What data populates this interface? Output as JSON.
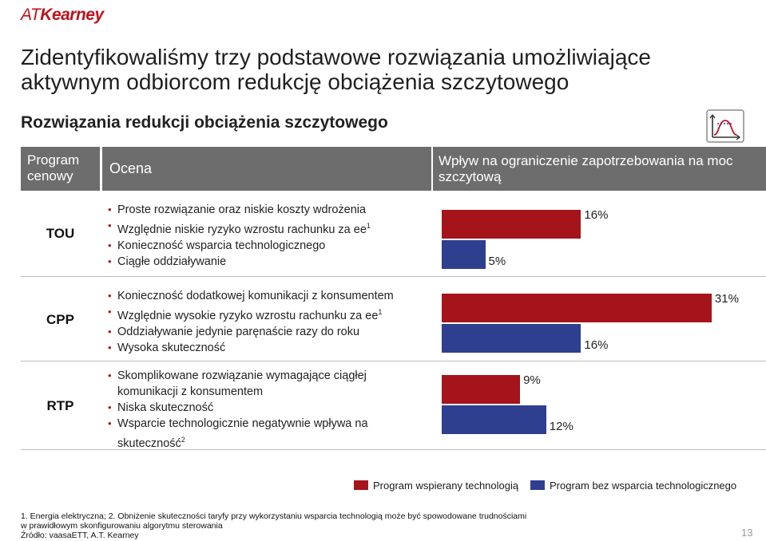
{
  "logo": {
    "part1": "AT",
    "part2": "Kearney"
  },
  "title": "Zidentyfikowaliśmy trzy podstawowe rozwiązania umożliwiające aktywnym odbiorcom redukcję obciążenia szczytowego",
  "subtitle": "Rozwiązania redukcji obciążenia szczytowego",
  "icon": "peak-load-chart-icon",
  "header": {
    "program": "Program cenowy",
    "ocena": "Ocena",
    "wplyw": "Wpływ na ograniczenie zapotrzebowania na moc szczytową"
  },
  "rows": [
    {
      "label": "TOU",
      "bullets": [
        {
          "text": "Proste rozwiązanie oraz niskie koszty wdrożenia",
          "sup": ""
        },
        {
          "text": "Względnie niskie ryzyko wzrostu rachunku za ee",
          "sup": "1"
        },
        {
          "text": "Konieczność wsparcia technologicznego",
          "sup": ""
        },
        {
          "text": "Ciągłe oddziaływanie",
          "sup": ""
        }
      ],
      "labels": {
        "tech": "16%",
        "notech": "5%"
      }
    },
    {
      "label": "CPP",
      "bullets": [
        {
          "text": "Konieczność dodatkowej komunikacji z konsumentem",
          "sup": ""
        },
        {
          "text": "Względnie wysokie ryzyko wzrostu rachunku za ee",
          "sup": "1"
        },
        {
          "text": "Oddziaływanie jedynie paręnaście razy do roku",
          "sup": ""
        },
        {
          "text": "Wysoka skuteczność",
          "sup": ""
        }
      ],
      "labels": {
        "tech": "31%",
        "notech": "16%"
      }
    },
    {
      "label": "RTP",
      "bullets": [
        {
          "text": "Skomplikowane rozwiązanie wymagające ciągłej komunikacji z konsumentem",
          "sup": ""
        },
        {
          "text": "Niska skuteczność",
          "sup": ""
        },
        {
          "text": "Wsparcie  technologicznie negatywnie wpływa na skuteczność",
          "sup": "2"
        }
      ],
      "labels": {
        "tech": "9%",
        "notech": "12%"
      }
    }
  ],
  "legend": {
    "tech": "Program wspierany technologią",
    "notech": "Program bez wsparcia technologicznego"
  },
  "colors": {
    "tech": "#a5141a",
    "notech": "#2f3f8f"
  },
  "chart_data": {
    "type": "bar",
    "orientation": "horizontal",
    "categories": [
      "TOU",
      "CPP",
      "RTP"
    ],
    "series": [
      {
        "name": "Program wspierany technologią",
        "values": [
          16,
          31,
          9
        ]
      },
      {
        "name": "Program bez wsparcia technologicznego",
        "values": [
          5,
          16,
          12
        ]
      }
    ],
    "unit": "%",
    "xlim": [
      0,
      31
    ],
    "grid": false,
    "legend_placement": "bottom-right"
  },
  "footnotes": {
    "line1": "1. Energia elektryczna; 2. Obniżenie skuteczności taryfy przy wykorzystaniu wsparcia technologią może być spowodowane trudnościami",
    "line2": "w prawidłowym skonfigurowaniu algorytmu sterowania",
    "source": "Źródło: vaasaETT, A.T. Kearney"
  },
  "page_number": "13"
}
